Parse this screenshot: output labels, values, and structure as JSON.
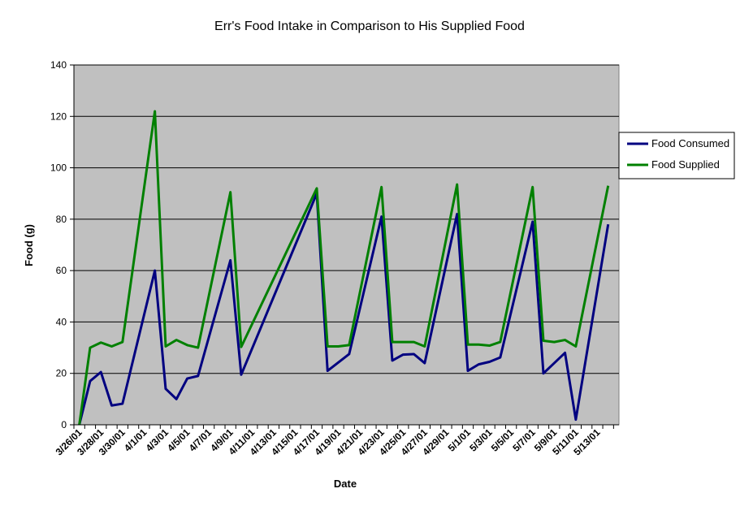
{
  "chart_data": {
    "type": "line",
    "title": "Err's Food Intake in Comparison to His Supplied Food",
    "xlabel": "Date",
    "ylabel": "Food (g)",
    "ylim": [
      0,
      140
    ],
    "yticks": [
      0,
      20,
      40,
      60,
      80,
      100,
      120,
      140
    ],
    "grid": true,
    "legend_position": "right",
    "x": [
      "3/26/01",
      "3/27/01",
      "3/28/01",
      "3/29/01",
      "3/30/01",
      "3/31/01",
      "4/1/01",
      "4/2/01",
      "4/3/01",
      "4/4/01",
      "4/5/01",
      "4/6/01",
      "4/7/01",
      "4/8/01",
      "4/9/01",
      "4/10/01",
      "4/11/01",
      "4/12/01",
      "4/13/01",
      "4/14/01",
      "4/15/01",
      "4/16/01",
      "4/17/01",
      "4/18/01",
      "4/19/01",
      "4/20/01",
      "4/21/01",
      "4/22/01",
      "4/23/01",
      "4/24/01",
      "4/25/01",
      "4/26/01",
      "4/27/01",
      "4/28/01",
      "4/29/01",
      "4/30/01",
      "5/1/01",
      "5/2/01",
      "5/3/01",
      "5/4/01",
      "5/5/01",
      "5/6/01",
      "5/7/01",
      "5/8/01",
      "5/9/01",
      "5/10/01",
      "5/11/01",
      "5/12/01",
      "5/13/01",
      "5/14/01",
      "5/15/01"
    ],
    "xtick_labels": [
      "3/26/01",
      "3/28/01",
      "3/30/01",
      "4/1/01",
      "4/3/01",
      "4/5/01",
      "4/7/01",
      "4/9/01",
      "4/11/01",
      "4/13/01",
      "4/15/01",
      "4/17/01",
      "4/19/01",
      "4/21/01",
      "4/23/01",
      "4/25/01",
      "4/27/01",
      "4/29/01",
      "5/1/01",
      "5/3/01",
      "5/5/01",
      "5/7/01",
      "5/9/01",
      "5/11/01",
      "5/13/01"
    ],
    "series": [
      {
        "name": "Food Consumed",
        "color": "#000080",
        "points": [
          [
            "3/26/01",
            0
          ],
          [
            "3/27/01",
            17
          ],
          [
            "3/28/01",
            20.5
          ],
          [
            "3/29/01",
            7.5
          ],
          [
            "3/30/01",
            8.2
          ],
          [
            "4/2/01",
            60
          ],
          [
            "4/3/01",
            14
          ],
          [
            "4/4/01",
            10
          ],
          [
            "4/5/01",
            18
          ],
          [
            "4/6/01",
            19
          ],
          [
            "4/9/01",
            64
          ],
          [
            "4/10/01",
            19.5
          ],
          [
            "4/17/01",
            90
          ],
          [
            "4/18/01",
            21
          ],
          [
            "4/20/01",
            27.5
          ],
          [
            "4/23/01",
            81
          ],
          [
            "4/24/01",
            25
          ],
          [
            "4/25/01",
            27.3
          ],
          [
            "4/26/01",
            27.5
          ],
          [
            "4/27/01",
            24
          ],
          [
            "4/30/01",
            82
          ],
          [
            "5/1/01",
            21
          ],
          [
            "5/2/01",
            23.5
          ],
          [
            "5/3/01",
            24.5
          ],
          [
            "5/4/01",
            26.2
          ],
          [
            "5/7/01",
            79
          ],
          [
            "5/8/01",
            20
          ],
          [
            "5/10/01",
            28
          ],
          [
            "5/11/01",
            2
          ],
          [
            "5/14/01",
            78
          ]
        ]
      },
      {
        "name": "Food Supplied",
        "color": "#008000",
        "points": [
          [
            "3/26/01",
            0
          ],
          [
            "3/27/01",
            30
          ],
          [
            "3/28/01",
            32
          ],
          [
            "3/29/01",
            30.5
          ],
          [
            "3/30/01",
            32.2
          ],
          [
            "4/2/01",
            122
          ],
          [
            "4/3/01",
            30.5
          ],
          [
            "4/4/01",
            33
          ],
          [
            "4/5/01",
            31
          ],
          [
            "4/6/01",
            30
          ],
          [
            "4/9/01",
            90.5
          ],
          [
            "4/10/01",
            30.3
          ],
          [
            "4/17/01",
            92
          ],
          [
            "4/18/01",
            30.5
          ],
          [
            "4/19/01",
            30.5
          ],
          [
            "4/20/01",
            31
          ],
          [
            "4/23/01",
            92.5
          ],
          [
            "4/24/01",
            32.2
          ],
          [
            "4/26/01",
            32.2
          ],
          [
            "4/27/01",
            30.5
          ],
          [
            "4/30/01",
            93.5
          ],
          [
            "5/1/01",
            31.2
          ],
          [
            "5/2/01",
            31.2
          ],
          [
            "5/3/01",
            30.8
          ],
          [
            "5/4/01",
            32.2
          ],
          [
            "5/7/01",
            92.5
          ],
          [
            "5/8/01",
            32.7
          ],
          [
            "5/9/01",
            32.2
          ],
          [
            "5/10/01",
            33
          ],
          [
            "5/11/01",
            30.5
          ],
          [
            "5/14/01",
            93
          ]
        ]
      }
    ]
  }
}
